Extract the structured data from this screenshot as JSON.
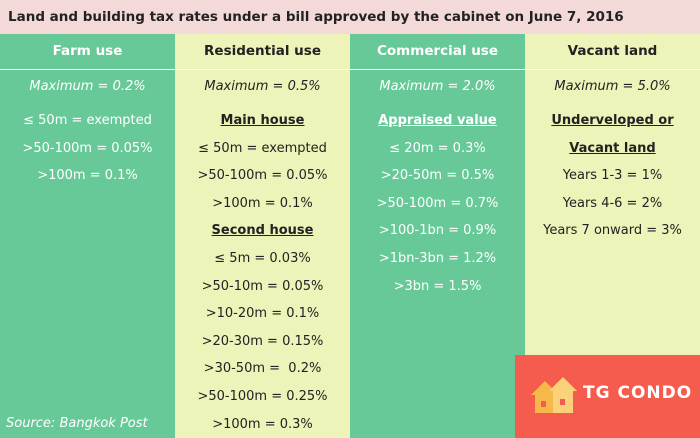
{
  "title": "Land and building tax rates under a bill approved by the cabinet on June 7, 2016",
  "columns": [
    {
      "header": "Farm use",
      "maximum": "Maximum = 0.2%",
      "groups": [
        {
          "heading": [],
          "items": [
            "≤ 50m = exempted",
            ">50-100m = 0.05%",
            ">100m = 0.1%"
          ]
        }
      ]
    },
    {
      "header": "Residential use",
      "maximum": "Maximum = 0.5%",
      "groups": [
        {
          "heading": [
            "Main house"
          ],
          "items": [
            "≤ 50m = exempted",
            ">50-100m = 0.05%",
            ">100m = 0.1%"
          ]
        },
        {
          "heading": [
            "Second house"
          ],
          "items": [
            "≤ 5m = 0.03%",
            ">50-10m = 0.05%",
            ">10-20m = 0.1%",
            ">20-30m = 0.15%",
            ">30-50m =  0.2%",
            ">50-100m = 0.25%",
            ">100m = 0.3%"
          ]
        }
      ]
    },
    {
      "header": "Commercial use",
      "maximum": "Maximum = 2.0%",
      "groups": [
        {
          "heading": [
            "Appraised value"
          ],
          "items": [
            "≤ 20m = 0.3%",
            ">20-50m = 0.5%",
            ">50-100m = 0.7%",
            ">100-1bn = 0.9%",
            ">1bn-3bn = 1.2%",
            ">3bn = 1.5%"
          ]
        }
      ]
    },
    {
      "header": "Vacant land",
      "maximum": "Maximum = 5.0%",
      "groups": [
        {
          "heading": [
            "Underveloped or",
            "Vacant land"
          ],
          "items": [
            "Years 1-3 = 1%",
            "Years 4-6 = 2%",
            "Years 7 onward = 3%"
          ]
        }
      ]
    }
  ],
  "source": "Source: Bangkok Post",
  "logo": "TG CONDO"
}
